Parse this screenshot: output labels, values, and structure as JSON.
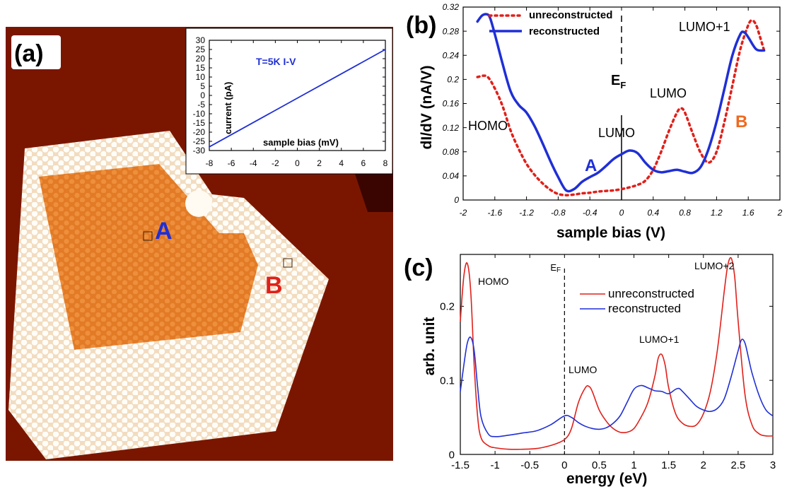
{
  "panel_a": {
    "label": "(a)",
    "point_a_label": "A",
    "point_b_label": "B",
    "colors": {
      "substrate": "#7a1600",
      "inner": "#e8832e",
      "ring": "#f6ead6",
      "point_a": "#1f2fd6",
      "point_b": "#e0201a"
    }
  },
  "chart_data": [
    {
      "id": "inset",
      "type": "line",
      "title": "T=5K  I-V",
      "xlabel": "sample bias (mV)",
      "ylabel": "current (pA)",
      "xlim": [
        -8,
        8
      ],
      "ylim": [
        -30,
        30
      ],
      "xticks": [
        "-8",
        "-6",
        "-4",
        "-2",
        "0",
        "2",
        "4",
        "6",
        "8"
      ],
      "yticks": [
        "-30",
        "-25",
        "-20",
        "-15",
        "-10",
        "-5",
        "0",
        "5",
        "10",
        "15",
        "20",
        "25",
        "30"
      ],
      "series": [
        {
          "color": "#1f2fd6",
          "x": [
            -8,
            8
          ],
          "y": [
            -28,
            25
          ]
        }
      ]
    },
    {
      "id": "b",
      "panel_label": "(b)",
      "type": "line",
      "xlabel": "sample bias (V)",
      "ylabel": "dI/dV (nA/V)",
      "xlim": [
        -2,
        2
      ],
      "ylim": [
        0,
        0.32
      ],
      "xticks": [
        "-2",
        "-1.6",
        "-1.2",
        "-0.8",
        "-0.4",
        "0",
        "0.4",
        "0.8",
        "1.2",
        "1.6",
        "2"
      ],
      "yticks": [
        "0",
        "0.04",
        "0.08",
        "0.12",
        "0.16",
        "0.2",
        "0.24",
        "0.28",
        "0.32"
      ],
      "legend": "top-left",
      "series": [
        {
          "name": "unreconstructed",
          "color": "#e0201a",
          "style": "dotted",
          "x": [
            -1.82,
            -1.7,
            -1.6,
            -1.5,
            -1.4,
            -1.3,
            -1.2,
            -1.1,
            -1.0,
            -0.9,
            -0.8,
            -0.7,
            -0.6,
            -0.5,
            -0.4,
            -0.3,
            -0.2,
            -0.1,
            0.0,
            0.1,
            0.2,
            0.3,
            0.4,
            0.5,
            0.6,
            0.7,
            0.75,
            0.8,
            0.9,
            1.0,
            1.1,
            1.2,
            1.3,
            1.4,
            1.5,
            1.6,
            1.65,
            1.7,
            1.75,
            1.8
          ],
          "y": [
            0.204,
            0.205,
            0.185,
            0.155,
            0.115,
            0.085,
            0.06,
            0.042,
            0.028,
            0.017,
            0.01,
            0.008,
            0.009,
            0.011,
            0.012,
            0.014,
            0.015,
            0.016,
            0.018,
            0.021,
            0.025,
            0.032,
            0.05,
            0.08,
            0.115,
            0.145,
            0.152,
            0.145,
            0.11,
            0.078,
            0.062,
            0.08,
            0.13,
            0.19,
            0.25,
            0.29,
            0.298,
            0.29,
            0.27,
            0.248
          ]
        },
        {
          "name": "reconstructed",
          "color": "#1f2fd6",
          "style": "solid",
          "x": [
            -1.82,
            -1.76,
            -1.7,
            -1.66,
            -1.6,
            -1.5,
            -1.4,
            -1.3,
            -1.2,
            -1.1,
            -1.0,
            -0.9,
            -0.8,
            -0.7,
            -0.6,
            -0.5,
            -0.4,
            -0.3,
            -0.2,
            -0.1,
            0.0,
            0.1,
            0.2,
            0.3,
            0.4,
            0.5,
            0.6,
            0.7,
            0.8,
            0.9,
            1.0,
            1.1,
            1.2,
            1.3,
            1.4,
            1.5,
            1.55,
            1.6,
            1.7,
            1.8
          ],
          "y": [
            0.296,
            0.306,
            0.308,
            0.302,
            0.275,
            0.225,
            0.18,
            0.158,
            0.145,
            0.123,
            0.095,
            0.065,
            0.038,
            0.016,
            0.018,
            0.03,
            0.038,
            0.045,
            0.056,
            0.068,
            0.076,
            0.082,
            0.078,
            0.062,
            0.05,
            0.046,
            0.048,
            0.05,
            0.047,
            0.045,
            0.055,
            0.085,
            0.13,
            0.185,
            0.24,
            0.275,
            0.278,
            0.27,
            0.25,
            0.248
          ]
        }
      ],
      "annotations": [
        "HOMO",
        "LUMO",
        "LUMO",
        "LUMO+1",
        "A",
        "B"
      ],
      "ef_label": "E",
      "ef_sub": "F"
    },
    {
      "id": "c",
      "panel_label": "(c)",
      "type": "line",
      "xlabel": "energy (eV)",
      "ylabel": "arb. unit",
      "xlim": [
        -1.5,
        3
      ],
      "ylim": [
        0,
        0.27
      ],
      "xticks": [
        "-1.5",
        "-1",
        "-0.5",
        "0",
        "0.5",
        "1",
        "1.5",
        "2",
        "2.5",
        "3"
      ],
      "yticks": [
        "0",
        "0.1",
        "0.2"
      ],
      "legend": "top-right",
      "series": [
        {
          "name": "unreconstructed",
          "color": "#e0201a",
          "style": "solid",
          "x": [
            -1.5,
            -1.45,
            -1.4,
            -1.35,
            -1.3,
            -1.25,
            -1.2,
            -1.1,
            -1.0,
            -0.8,
            -0.6,
            -0.4,
            -0.2,
            0.0,
            0.1,
            0.2,
            0.3,
            0.35,
            0.4,
            0.5,
            0.6,
            0.7,
            0.8,
            0.9,
            1.0,
            1.1,
            1.2,
            1.3,
            1.35,
            1.4,
            1.45,
            1.5,
            1.6,
            1.7,
            1.8,
            1.9,
            2.0,
            2.1,
            2.2,
            2.3,
            2.35,
            2.4,
            2.45,
            2.5,
            2.6,
            2.7,
            2.8,
            2.9,
            3.0
          ],
          "y": [
            0.18,
            0.24,
            0.258,
            0.22,
            0.12,
            0.05,
            0.022,
            0.012,
            0.009,
            0.007,
            0.007,
            0.008,
            0.012,
            0.02,
            0.035,
            0.07,
            0.09,
            0.092,
            0.085,
            0.06,
            0.045,
            0.035,
            0.03,
            0.03,
            0.035,
            0.05,
            0.07,
            0.105,
            0.13,
            0.135,
            0.12,
            0.09,
            0.055,
            0.042,
            0.038,
            0.04,
            0.055,
            0.085,
            0.14,
            0.22,
            0.255,
            0.265,
            0.24,
            0.18,
            0.08,
            0.04,
            0.028,
            0.025,
            0.025
          ]
        },
        {
          "name": "reconstructed",
          "color": "#1f2fd6",
          "style": "solid",
          "x": [
            -1.5,
            -1.45,
            -1.4,
            -1.35,
            -1.3,
            -1.25,
            -1.2,
            -1.1,
            -1.0,
            -0.8,
            -0.6,
            -0.4,
            -0.2,
            0.0,
            0.1,
            0.2,
            0.3,
            0.4,
            0.5,
            0.6,
            0.7,
            0.8,
            0.9,
            1.0,
            1.1,
            1.2,
            1.3,
            1.4,
            1.5,
            1.6,
            1.65,
            1.7,
            1.8,
            1.9,
            2.0,
            2.1,
            2.2,
            2.3,
            2.4,
            2.5,
            2.55,
            2.6,
            2.65,
            2.7,
            2.8,
            2.9,
            3.0
          ],
          "y": [
            0.085,
            0.12,
            0.15,
            0.158,
            0.14,
            0.09,
            0.05,
            0.028,
            0.024,
            0.026,
            0.029,
            0.032,
            0.04,
            0.052,
            0.05,
            0.043,
            0.038,
            0.035,
            0.034,
            0.036,
            0.042,
            0.052,
            0.07,
            0.088,
            0.093,
            0.09,
            0.086,
            0.085,
            0.082,
            0.088,
            0.089,
            0.085,
            0.075,
            0.065,
            0.06,
            0.058,
            0.062,
            0.075,
            0.105,
            0.14,
            0.155,
            0.15,
            0.13,
            0.11,
            0.08,
            0.06,
            0.052
          ]
        }
      ],
      "annotations": [
        "HOMO",
        "LUMO",
        "LUMO+1",
        "LUMO+2"
      ],
      "ef_label": "E",
      "ef_sub": "F"
    }
  ]
}
